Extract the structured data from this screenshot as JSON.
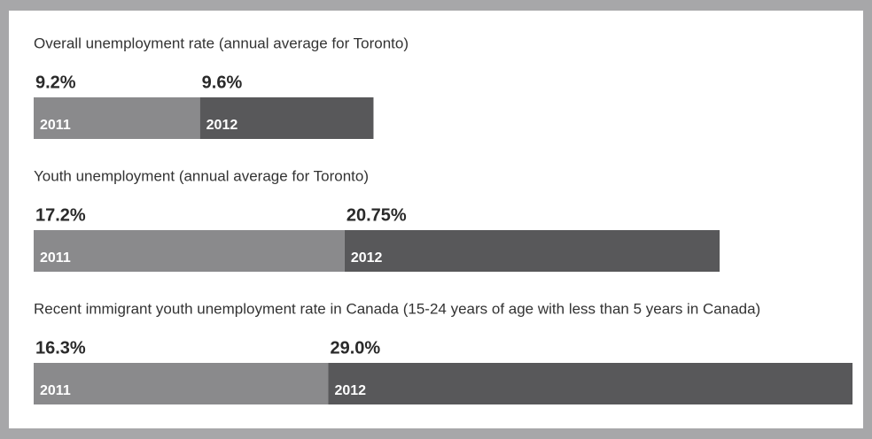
{
  "chart_data": [
    {
      "type": "bar",
      "orientation": "horizontal",
      "stacked": true,
      "title": "Overall unemployment rate (annual average for Toronto)",
      "xlim": [
        0,
        45.3
      ],
      "series": [
        {
          "name": "2011",
          "color": "#8a8a8c",
          "values": [
            9.2
          ],
          "value_labels": [
            "9.2%"
          ]
        },
        {
          "name": "2012",
          "color": "#58585a",
          "values": [
            9.6
          ],
          "value_labels": [
            "9.6%"
          ]
        }
      ]
    },
    {
      "type": "bar",
      "orientation": "horizontal",
      "stacked": true,
      "title": "Youth unemployment (annual average for Toronto)",
      "xlim": [
        0,
        45.3
      ],
      "series": [
        {
          "name": "2011",
          "color": "#8a8a8c",
          "values": [
            17.2
          ],
          "value_labels": [
            "17.2%"
          ]
        },
        {
          "name": "2012",
          "color": "#58585a",
          "values": [
            20.75
          ],
          "value_labels": [
            "20.75%"
          ]
        }
      ]
    },
    {
      "type": "bar",
      "orientation": "horizontal",
      "stacked": true,
      "title": "Recent immigrant youth unemployment rate in Canada (15-24 years of age with less than 5 years in Canada)",
      "xlim": [
        0,
        45.3
      ],
      "series": [
        {
          "name": "2011",
          "color": "#8a8a8c",
          "values": [
            16.3
          ],
          "value_labels": [
            "16.3%"
          ]
        },
        {
          "name": "2012",
          "color": "#58585a",
          "values": [
            29.0
          ],
          "value_labels": [
            "29.0%"
          ]
        }
      ]
    }
  ]
}
